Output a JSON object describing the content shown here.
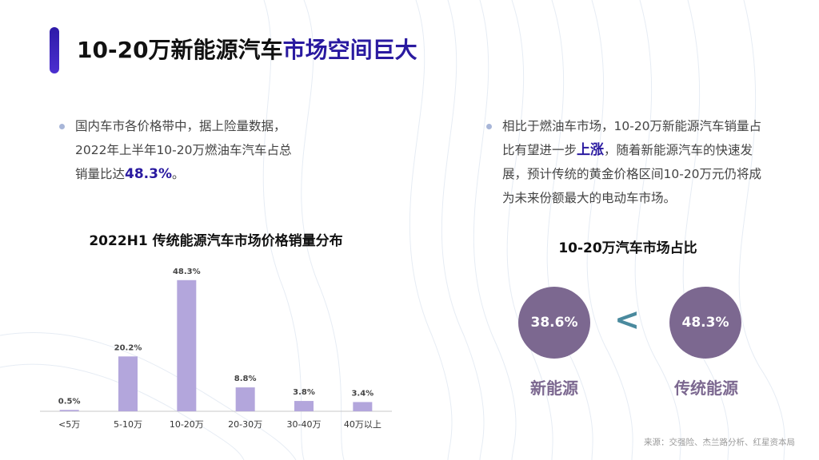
{
  "title": {
    "main": "10-20万新能源汽车",
    "highlight": "市场空间巨大"
  },
  "left_bullet": {
    "line1": "国内车市各价格带中，据上险量数据，",
    "line2": "2022年上半年10-20万燃油车汽车占总",
    "line3_prefix": "销量比达",
    "line3_value": "48.3%",
    "line3_suffix": "。"
  },
  "right_bullet": {
    "line1": "相比于燃油车市场，10-20万新能源汽车销量占",
    "line2_prefix": "比有望进一步",
    "line2_strong": "上涨",
    "line2_suffix": "，随着新能源汽车的快速发",
    "line3": "展，预计传统的黄金价格区间10-20万元仍将成",
    "line4": "为未来份额最大的电动车市场。"
  },
  "chart_data": {
    "type": "bar",
    "title": "2022H1 传统能源汽车市场价格销量分布",
    "categories": [
      "<5万",
      "5-10万",
      "10-20万",
      "20-30万",
      "30-40万",
      "40万以上"
    ],
    "values": [
      0.5,
      20.2,
      48.3,
      8.8,
      3.8,
      3.4
    ],
    "value_labels": [
      "0.5%",
      "20.2%",
      "48.3%",
      "8.8%",
      "3.8%",
      "3.4%"
    ],
    "ylim": [
      0,
      50
    ],
    "grid": false,
    "bar_color": "#b3a6dc",
    "axis_color": "#c8c8c8"
  },
  "comparison": {
    "title": "10-20万汽车市场占比",
    "left_value": "38.6%",
    "left_label": "新能源",
    "operator": "<",
    "right_value": "48.3%",
    "right_label": "传统能源"
  },
  "colors": {
    "accent": "#2a1aa0",
    "circle": "#7c6890",
    "operator": "#4a8a9e"
  },
  "source": "来源：交强险、杰兰路分析、红星资本局"
}
